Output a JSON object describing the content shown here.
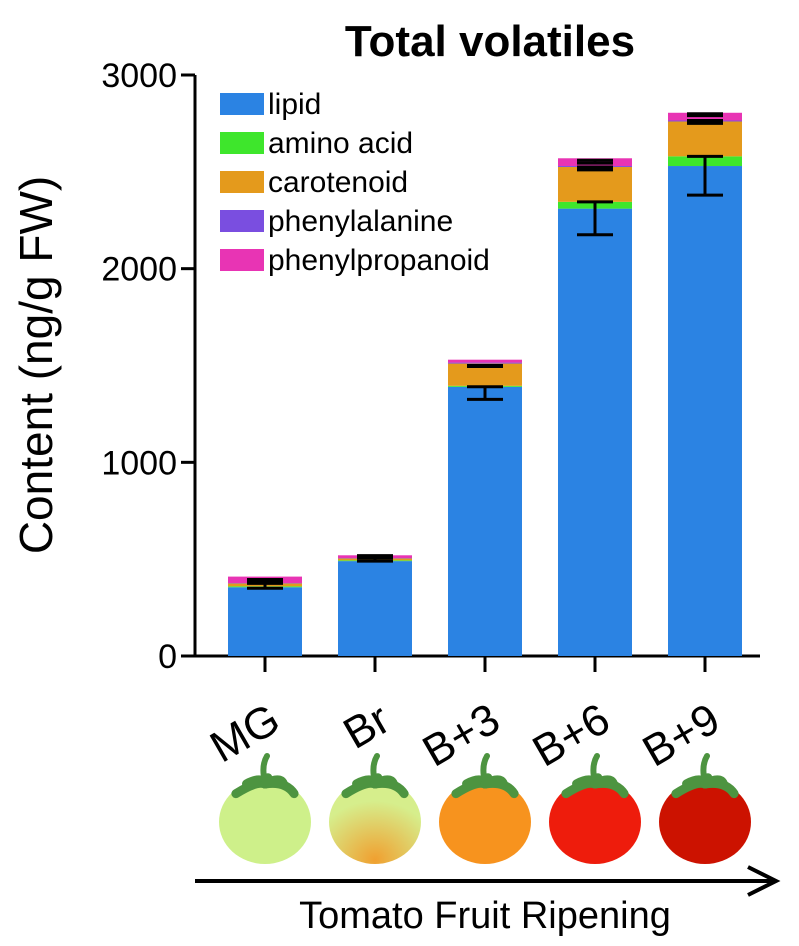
{
  "chart_data": {
    "type": "bar",
    "stacked": true,
    "title": "Total volatiles",
    "ylabel": "Content (ng/g FW)",
    "xlabel": "Tomato Fruit Ripening",
    "ylim": [
      0,
      3000
    ],
    "yticks": [
      0,
      1000,
      2000,
      3000
    ],
    "grid": false,
    "legend_position": "top-left",
    "categories": [
      "MG",
      "Br",
      "B+3",
      "B+6",
      "B+9"
    ],
    "series": [
      {
        "name": "lipid",
        "color": "#2b83e3",
        "values": [
          355,
          490,
          1390,
          2310,
          2530
        ],
        "errors": [
          25,
          10,
          65,
          140,
          150
        ]
      },
      {
        "name": "amino acid",
        "color": "#3ee62c",
        "values": [
          5,
          4,
          5,
          35,
          50
        ],
        "errors": [
          0,
          0,
          0,
          0,
          0
        ]
      },
      {
        "name": "carotenoid",
        "color": "#e49a1c",
        "values": [
          15,
          10,
          115,
          180,
          180
        ],
        "errors": [
          0,
          0,
          0,
          0,
          0
        ]
      },
      {
        "name": "phenylalanine",
        "color": "#7a4ee0",
        "values": [
          2,
          2,
          5,
          5,
          5
        ],
        "errors": [
          0,
          0,
          0,
          0,
          0
        ]
      },
      {
        "name": "phenylpropanoid",
        "color": "#e834b4",
        "values": [
          33,
          14,
          15,
          40,
          40
        ],
        "errors": [
          0,
          0,
          0,
          0,
          0
        ]
      }
    ],
    "segment_errors": [
      [
        {
          "at": 375,
          "err": 25
        },
        {
          "at": 395,
          "err": 10
        }
      ],
      [
        {
          "at": 510,
          "err": 20
        },
        {
          "at": 518,
          "err": 12
        }
      ],
      [
        {
          "at": 1390,
          "err": 65
        },
        {
          "at": 1500,
          "err": 5
        }
      ],
      [
        {
          "at": 2345,
          "err": 170
        },
        {
          "at": 2525,
          "err": 15
        },
        {
          "at": 2560,
          "err": 15
        }
      ],
      [
        {
          "at": 2580,
          "err": 200
        },
        {
          "at": 2765,
          "err": 15
        },
        {
          "at": 2800,
          "err": 10
        }
      ]
    ],
    "tomato_colors": [
      {
        "body": "#cef08a",
        "highlight": "#cef08a"
      },
      {
        "body": "#d6ee8c",
        "highlight": "#f0a030"
      },
      {
        "body": "#f7931e",
        "highlight": "#f7931e"
      },
      {
        "body": "#ee1c0c",
        "highlight": "#ee1c0c"
      },
      {
        "body": "#cc1200",
        "highlight": "#cc1200"
      }
    ],
    "stem_color": "#4d9440"
  }
}
